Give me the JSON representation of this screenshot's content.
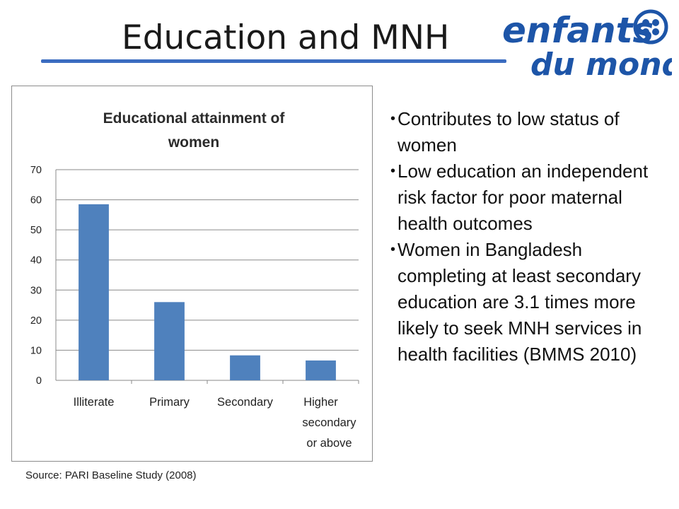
{
  "slide": {
    "title": "Education and MNH",
    "source": "Source: PARI Baseline Study (2008)"
  },
  "logo": {
    "line1": "enfants",
    "line2": "du monde",
    "color": "#1d55a8"
  },
  "bullets": [
    "Contributes to low status of women",
    "Low education an independent risk factor for poor maternal health outcomes",
    "Women in Bangladesh completing at least secondary education are 3.1 times more likely to seek MNH services in health facilities (BMMS 2010)"
  ],
  "chart_data": {
    "type": "bar",
    "title": "Educational attainment of women",
    "title_lines": [
      "Educational attainment of",
      "women"
    ],
    "categories": [
      "Illiterate",
      "Primary",
      "Secondary",
      "Higher secondary or above"
    ],
    "category_lines": [
      [
        "Illiterate"
      ],
      [
        "Primary"
      ],
      [
        "Secondary"
      ],
      [
        "Higher",
        "secondary",
        "or above"
      ]
    ],
    "values": [
      58.5,
      26,
      8.3,
      6.6
    ],
    "ylim": [
      0,
      70
    ],
    "yticks": [
      0,
      10,
      20,
      30,
      40,
      50,
      60,
      70
    ],
    "grid": true,
    "legend": "none",
    "bar_color": "#4f81bd",
    "xlabel": "",
    "ylabel": ""
  }
}
